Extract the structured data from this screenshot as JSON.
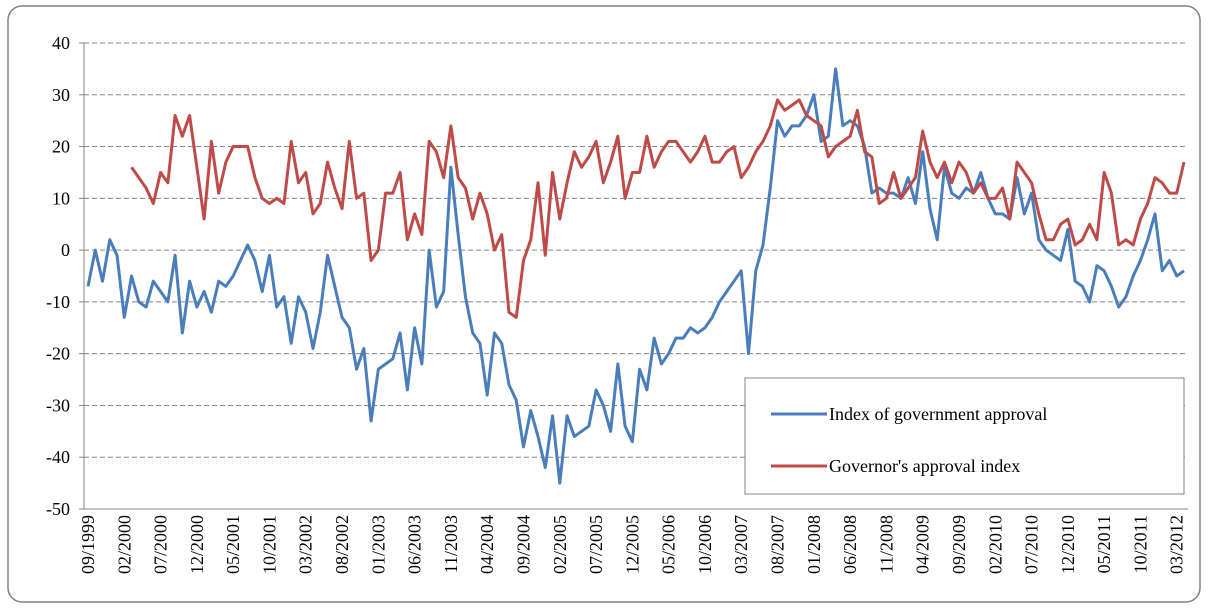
{
  "chart_data": {
    "type": "line",
    "categories": [
      "09/1999",
      null,
      null,
      null,
      null,
      "02/2000",
      null,
      null,
      null,
      null,
      "07/2000",
      null,
      null,
      null,
      null,
      "12/2000",
      null,
      null,
      null,
      null,
      "05/2001",
      null,
      null,
      null,
      null,
      "10/2001",
      null,
      null,
      null,
      null,
      "03/2002",
      null,
      null,
      null,
      null,
      "08/2002",
      null,
      null,
      null,
      null,
      "01/2003",
      null,
      null,
      null,
      null,
      "06/2003",
      null,
      null,
      null,
      null,
      "11/2003",
      null,
      null,
      null,
      null,
      "04/2004",
      null,
      null,
      null,
      null,
      "09/2004",
      null,
      null,
      null,
      null,
      "02/2005",
      null,
      null,
      null,
      null,
      "07/2005",
      null,
      null,
      null,
      null,
      "12/2005",
      null,
      null,
      null,
      null,
      "05/2006",
      null,
      null,
      null,
      null,
      "10/2006",
      null,
      null,
      null,
      null,
      "03/2007",
      null,
      null,
      null,
      null,
      "08/2007",
      null,
      null,
      null,
      null,
      "01/2008",
      null,
      null,
      null,
      null,
      "06/2008",
      null,
      null,
      null,
      null,
      "11/2008",
      null,
      null,
      null,
      null,
      "04/2009",
      null,
      null,
      null,
      null,
      "09/2009",
      null,
      null,
      null,
      null,
      "02/2010",
      null,
      null,
      null,
      null,
      "07/2010",
      null,
      null,
      null,
      null,
      "12/2010",
      null,
      null,
      null,
      null,
      "05/2011",
      null,
      null,
      null,
      null,
      "10/2011",
      null,
      null,
      null,
      null,
      "03/2012",
      null
    ],
    "series": [
      {
        "name": "Index of government approval",
        "color": "#4a7ebb",
        "values": [
          -7,
          0,
          -6,
          2,
          -1,
          -13,
          -5,
          -10,
          -11,
          -6,
          -8,
          -10,
          -1,
          -16,
          -6,
          -11,
          -8,
          -12,
          -6,
          -7,
          -5,
          -2,
          1,
          -2,
          -8,
          -1,
          -11,
          -9,
          -18,
          -9,
          -12,
          -19,
          -12,
          -1,
          -7,
          -13,
          -15,
          -23,
          -19,
          -33,
          -23,
          -22,
          -21,
          -16,
          -27,
          -15,
          -22,
          0,
          -11,
          -8,
          16,
          3,
          -9,
          -16,
          -18,
          -28,
          -16,
          -18,
          -26,
          -29,
          -38,
          -31,
          -36,
          -42,
          -32,
          -45,
          -32,
          -36,
          -35,
          -34,
          -27,
          -30,
          -35,
          -22,
          -34,
          -37,
          -23,
          -27,
          -17,
          -22,
          -20,
          -17,
          -17,
          -15,
          -16,
          -15,
          -13,
          -10,
          -8,
          -6,
          -4,
          -20,
          -4,
          1,
          12,
          25,
          22,
          24,
          24,
          26,
          30,
          21,
          22,
          35,
          24,
          25,
          24,
          20,
          11,
          12,
          11,
          11,
          10,
          14,
          9,
          19,
          8,
          2,
          16,
          11,
          10,
          12,
          11,
          15,
          10,
          7,
          7,
          6,
          14,
          7,
          11,
          2,
          0,
          -1,
          -2,
          4,
          -6,
          -7,
          -10,
          -3,
          -4,
          -7,
          -11,
          -9,
          -5,
          -2,
          2,
          7,
          -4,
          -2,
          -5,
          -4
        ]
      },
      {
        "name": "Governor's approval index",
        "color": "#be4b48",
        "values": [
          null,
          null,
          null,
          null,
          null,
          null,
          16,
          14,
          12,
          9,
          15,
          13,
          26,
          22,
          26,
          16,
          6,
          21,
          11,
          17,
          20,
          20,
          20,
          14,
          10,
          9,
          10,
          9,
          21,
          13,
          15,
          7,
          9,
          17,
          12,
          8,
          21,
          10,
          11,
          -2,
          0,
          11,
          11,
          15,
          2,
          7,
          3,
          21,
          19,
          14,
          24,
          14,
          12,
          6,
          11,
          7,
          0,
          3,
          -12,
          -13,
          -2,
          2,
          13,
          -1,
          15,
          6,
          13,
          19,
          16,
          18,
          21,
          13,
          17,
          22,
          10,
          15,
          15,
          22,
          16,
          19,
          21,
          21,
          19,
          17,
          19,
          22,
          17,
          17,
          19,
          20,
          14,
          16,
          19,
          21,
          24,
          29,
          27,
          28,
          29,
          26,
          25,
          24,
          18,
          20,
          21,
          22,
          27,
          19,
          18,
          9,
          10,
          15,
          10,
          12,
          14,
          23,
          17,
          14,
          17,
          13,
          17,
          15,
          11,
          13,
          10,
          10,
          12,
          6,
          17,
          15,
          13,
          7,
          2,
          2,
          5,
          6,
          1,
          2,
          5,
          2,
          15,
          11,
          1,
          2,
          1,
          6,
          9,
          14,
          13,
          11,
          11,
          17
        ]
      }
    ],
    "ylim": [
      -50,
      40
    ],
    "yticks": [
      -50,
      -40,
      -30,
      -20,
      -10,
      0,
      10,
      20,
      30,
      40
    ],
    "grid": true,
    "legend": "lower right"
  }
}
